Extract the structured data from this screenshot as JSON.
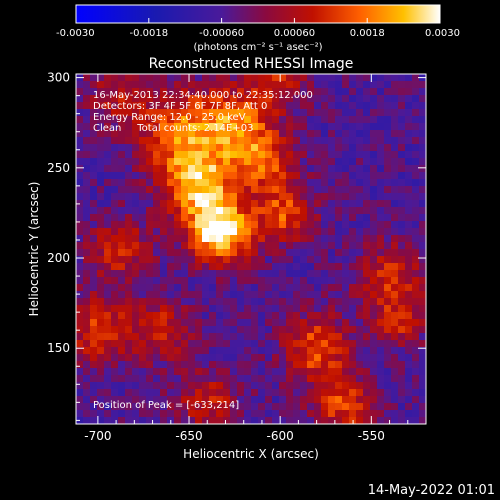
{
  "chart_data": {
    "type": "heatmap",
    "title": "Reconstructed RHESSI Image",
    "xlabel": "Heliocentric X (arcsec)",
    "ylabel": "Heliocentric Y (arcsec)",
    "xlim": [
      -712,
      -520
    ],
    "ylim": [
      108,
      302
    ],
    "x_ticks": [
      -700,
      -650,
      -600,
      -550
    ],
    "y_ticks": [
      150,
      200,
      250,
      300
    ],
    "colorbar": {
      "range": [
        -0.003,
        0.003
      ],
      "tick_values": [
        -0.003,
        -0.0018,
        -0.0006,
        0.0006,
        0.0018,
        0.003
      ],
      "tick_labels": [
        "-0.0030",
        "-0.0018",
        "-0.00060",
        "0.00060",
        "0.0018",
        "0.0030"
      ],
      "unit_label": "(photons cm⁻² s⁻¹ asec⁻²)"
    },
    "peak": [
      -633,
      214
    ],
    "sources": [
      {
        "x": -633,
        "y": 214,
        "peak": 0.003,
        "sigma": 12
      },
      {
        "x": -645,
        "y": 240,
        "peak": 0.0022,
        "sigma": 14
      },
      {
        "x": -655,
        "y": 270,
        "peak": 0.0016,
        "sigma": 16
      },
      {
        "x": -625,
        "y": 275,
        "peak": 0.0015,
        "sigma": 14
      },
      {
        "x": -610,
        "y": 255,
        "peak": 0.0014,
        "sigma": 12
      },
      {
        "x": -598,
        "y": 225,
        "peak": 0.0014,
        "sigma": 12
      },
      {
        "x": -688,
        "y": 205,
        "peak": 0.001,
        "sigma": 12
      },
      {
        "x": -700,
        "y": 160,
        "peak": 0.0011,
        "sigma": 14
      },
      {
        "x": -665,
        "y": 160,
        "peak": 0.0009,
        "sigma": 12
      },
      {
        "x": -580,
        "y": 150,
        "peak": 0.0015,
        "sigma": 13
      },
      {
        "x": -565,
        "y": 118,
        "peak": 0.0013,
        "sigma": 12
      },
      {
        "x": -540,
        "y": 190,
        "peak": 0.0009,
        "sigma": 14
      },
      {
        "x": -535,
        "y": 165,
        "peak": 0.0008,
        "sigma": 10
      },
      {
        "x": -640,
        "y": 120,
        "peak": 0.0009,
        "sigma": 12
      },
      {
        "x": -600,
        "y": 300,
        "peak": 0.0008,
        "sigma": 12
      },
      {
        "x": -690,
        "y": 290,
        "peak": 0.0006,
        "sigma": 12
      }
    ],
    "background": -0.0006,
    "annotations": [
      "16-May-2013 22:34:40.000 to 22:35:12.000",
      "Detectors: 3F 4F 5F 6F 7F 8F, Att 0",
      "Energy Range: 12.0 - 25.0 keV",
      "Clean     Total counts: 2.14E+03",
      "Position of Peak = [-633,214]"
    ]
  },
  "footer": {
    "timestamp": "14-May-2022 01:01"
  }
}
